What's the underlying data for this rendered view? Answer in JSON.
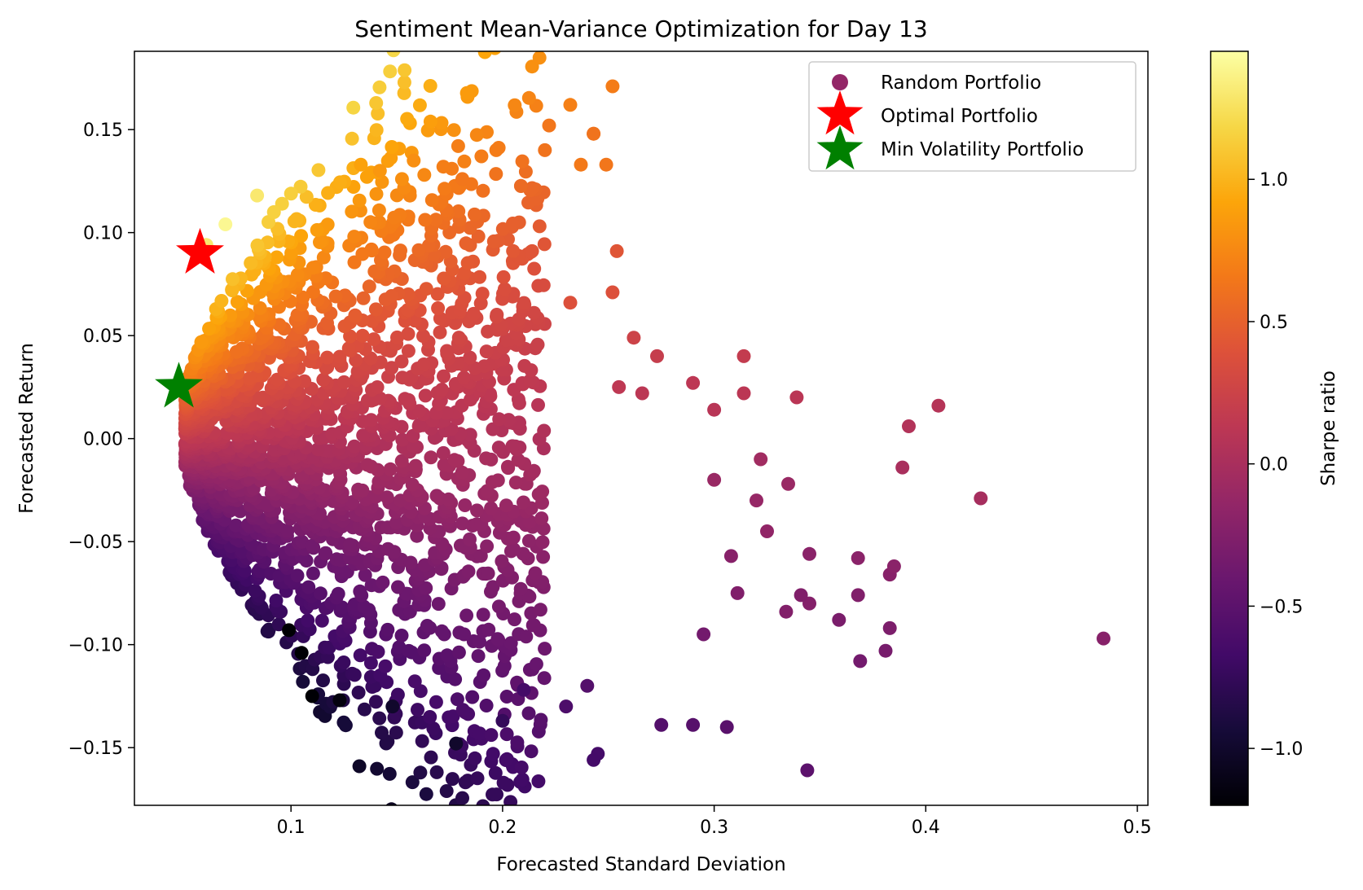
{
  "chart_data": {
    "type": "scatter",
    "title": "Sentiment Mean-Variance Optimization for Day 13",
    "xlabel": "Forecasted Standard Deviation",
    "ylabel": "Forecasted Return",
    "xlim": [
      0.026,
      0.505
    ],
    "ylim": [
      -0.178,
      0.188
    ],
    "xticks": [
      0.1,
      0.2,
      0.3,
      0.4,
      0.5
    ],
    "xtick_labels": [
      "0.1",
      "0.2",
      "0.3",
      "0.4",
      "0.5"
    ],
    "yticks": [
      -0.15,
      -0.1,
      -0.05,
      0.0,
      0.05,
      0.1,
      0.15
    ],
    "ytick_labels": [
      "−0.15",
      "−0.10",
      "−0.05",
      "0.00",
      "0.05",
      "0.10",
      "0.15"
    ],
    "grid": false,
    "legend_position": "top-right",
    "colormap": "inferno",
    "colorbar": {
      "label": "Sharpe ratio",
      "range": [
        -1.2,
        1.45
      ],
      "ticks": [
        -1.0,
        -0.5,
        0.0,
        0.5,
        1.0
      ],
      "tick_labels": [
        "−1.0",
        "−0.5",
        "0.0",
        "0.5",
        "1.0"
      ]
    },
    "series": [
      {
        "name": "Random Portfolio",
        "marker": "circle",
        "color_by": "Sharpe ratio",
        "x": [
          0.252,
          0.232,
          0.243,
          0.243,
          0.22,
          0.222,
          0.179,
          0.197,
          0.19,
          0.237,
          0.249,
          0.133,
          0.142,
          0.158,
          0.176,
          0.172,
          0.181,
          0.084,
          0.069,
          0.06,
          0.254,
          0.252,
          0.262,
          0.273,
          0.314,
          0.314,
          0.339,
          0.29,
          0.232,
          0.255,
          0.266,
          0.3,
          0.406,
          0.392,
          0.389,
          0.426,
          0.334,
          0.345,
          0.341,
          0.311,
          0.368,
          0.383,
          0.385,
          0.359,
          0.369,
          0.381,
          0.383,
          0.368,
          0.484,
          0.344,
          0.245,
          0.243,
          0.275,
          0.29,
          0.306,
          0.178,
          0.11,
          0.123,
          0.148,
          0.105,
          0.099,
          0.2,
          0.21,
          0.23,
          0.24,
          0.3,
          0.32,
          0.335,
          0.345,
          0.322,
          0.308,
          0.325,
          0.295
        ],
        "y": [
          0.171,
          0.162,
          0.148,
          0.148,
          0.14,
          0.152,
          0.142,
          0.14,
          0.137,
          0.133,
          0.133,
          0.133,
          0.13,
          0.135,
          0.131,
          0.132,
          0.126,
          0.118,
          0.104,
          0.094,
          0.091,
          0.071,
          0.049,
          0.04,
          0.04,
          0.022,
          0.02,
          0.027,
          0.066,
          0.025,
          0.022,
          0.014,
          0.016,
          0.006,
          -0.014,
          -0.029,
          -0.084,
          -0.08,
          -0.076,
          -0.075,
          -0.076,
          -0.066,
          -0.062,
          -0.088,
          -0.108,
          -0.103,
          -0.092,
          -0.058,
          -0.097,
          -0.161,
          -0.153,
          -0.156,
          -0.139,
          -0.139,
          -0.14,
          -0.148,
          -0.125,
          -0.127,
          -0.13,
          -0.104,
          -0.093,
          -0.137,
          -0.122,
          -0.13,
          -0.12,
          -0.02,
          -0.03,
          -0.022,
          -0.056,
          -0.01,
          -0.057,
          -0.045,
          -0.095
        ],
        "sharpe": [
          0.68,
          0.7,
          0.63,
          0.62,
          0.62,
          0.64,
          0.69,
          0.68,
          0.68,
          0.66,
          0.64,
          0.9,
          0.84,
          0.79,
          0.68,
          0.69,
          0.64,
          1.3,
          1.4,
          1.3,
          0.42,
          0.38,
          0.25,
          0.2,
          0.18,
          0.12,
          0.11,
          0.13,
          0.38,
          0.14,
          0.12,
          0.1,
          0.08,
          0.06,
          0.0,
          -0.02,
          -0.25,
          -0.24,
          -0.26,
          -0.26,
          -0.26,
          -0.22,
          -0.2,
          -0.3,
          -0.35,
          -0.32,
          -0.29,
          -0.2,
          -0.22,
          -0.5,
          -0.65,
          -0.66,
          -0.55,
          -0.53,
          -0.52,
          -1.0,
          -1.2,
          -1.15,
          -1.0,
          -1.2,
          -1.2,
          -0.75,
          -0.65,
          -0.6,
          -0.55,
          -0.1,
          -0.12,
          -0.1,
          -0.2,
          -0.05,
          -0.22,
          -0.15,
          -0.35
        ]
      },
      {
        "name": "Optimal Portfolio",
        "marker": "star",
        "color": "#ff0000",
        "x": [
          0.057
        ],
        "y": [
          0.09
        ]
      },
      {
        "name": "Min Volatility Portfolio",
        "marker": "star",
        "color": "#008000",
        "x": [
          0.047
        ],
        "y": [
          0.025
        ]
      }
    ]
  }
}
